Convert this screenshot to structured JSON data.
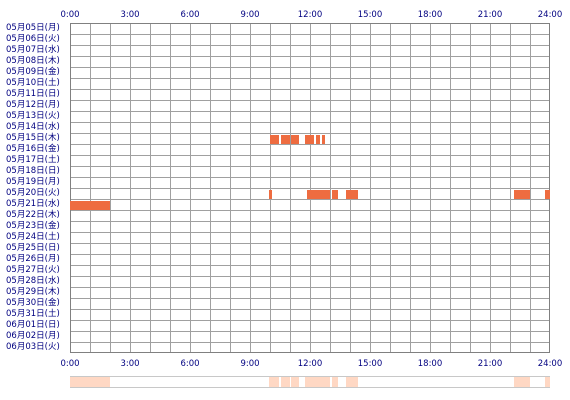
{
  "hour_labels": [
    "0:00",
    "3:00",
    "6:00",
    "9:00",
    "12:00",
    "15:00",
    "18:00",
    "21:00",
    "24:00"
  ],
  "dates": [
    "05月05日(月)",
    "05月06日(火)",
    "05月07日(水)",
    "05月08日(木)",
    "05月09日(金)",
    "05月10日(土)",
    "05月11日(日)",
    "05月12日(月)",
    "05月13日(火)",
    "05月14日(水)",
    "05月15日(木)",
    "05月16日(金)",
    "05月17日(土)",
    "05月18日(日)",
    "05月19日(月)",
    "05月20日(火)",
    "05月21日(水)",
    "05月22日(木)",
    "05月23日(金)",
    "05月24日(土)",
    "05月25日(日)",
    "05月26日(月)",
    "05月27日(火)",
    "05月28日(水)",
    "05月29日(木)",
    "05月30日(金)",
    "05月31日(土)",
    "06月01日(日)",
    "06月02日(月)",
    "06月03日(火)"
  ],
  "colors": {
    "activity": "#ee6c40",
    "summary": "#ffd8c4",
    "label_text": "#000080",
    "grid_line": "#a0a0a0"
  },
  "activity": [
    {
      "date": "05月15日(木)",
      "start": 10.0,
      "end": 10.45
    },
    {
      "date": "05月15日(木)",
      "start": 10.55,
      "end": 11.0
    },
    {
      "date": "05月15日(木)",
      "start": 11.05,
      "end": 11.45
    },
    {
      "date": "05月15日(木)",
      "start": 11.75,
      "end": 12.2
    },
    {
      "date": "05月15日(木)",
      "start": 12.3,
      "end": 12.5
    },
    {
      "date": "05月15日(木)",
      "start": 12.6,
      "end": 12.75
    },
    {
      "date": "05月20日(火)",
      "start": 9.95,
      "end": 10.1
    },
    {
      "date": "05月20日(火)",
      "start": 11.85,
      "end": 13.0
    },
    {
      "date": "05月20日(火)",
      "start": 13.1,
      "end": 13.4
    },
    {
      "date": "05月20日(火)",
      "start": 13.8,
      "end": 14.4
    },
    {
      "date": "05月20日(火)",
      "start": 22.2,
      "end": 23.0
    },
    {
      "date": "05月20日(火)",
      "start": 23.75,
      "end": 24.0
    },
    {
      "date": "05月21日(水)",
      "start": 0.0,
      "end": 2.0
    }
  ]
}
